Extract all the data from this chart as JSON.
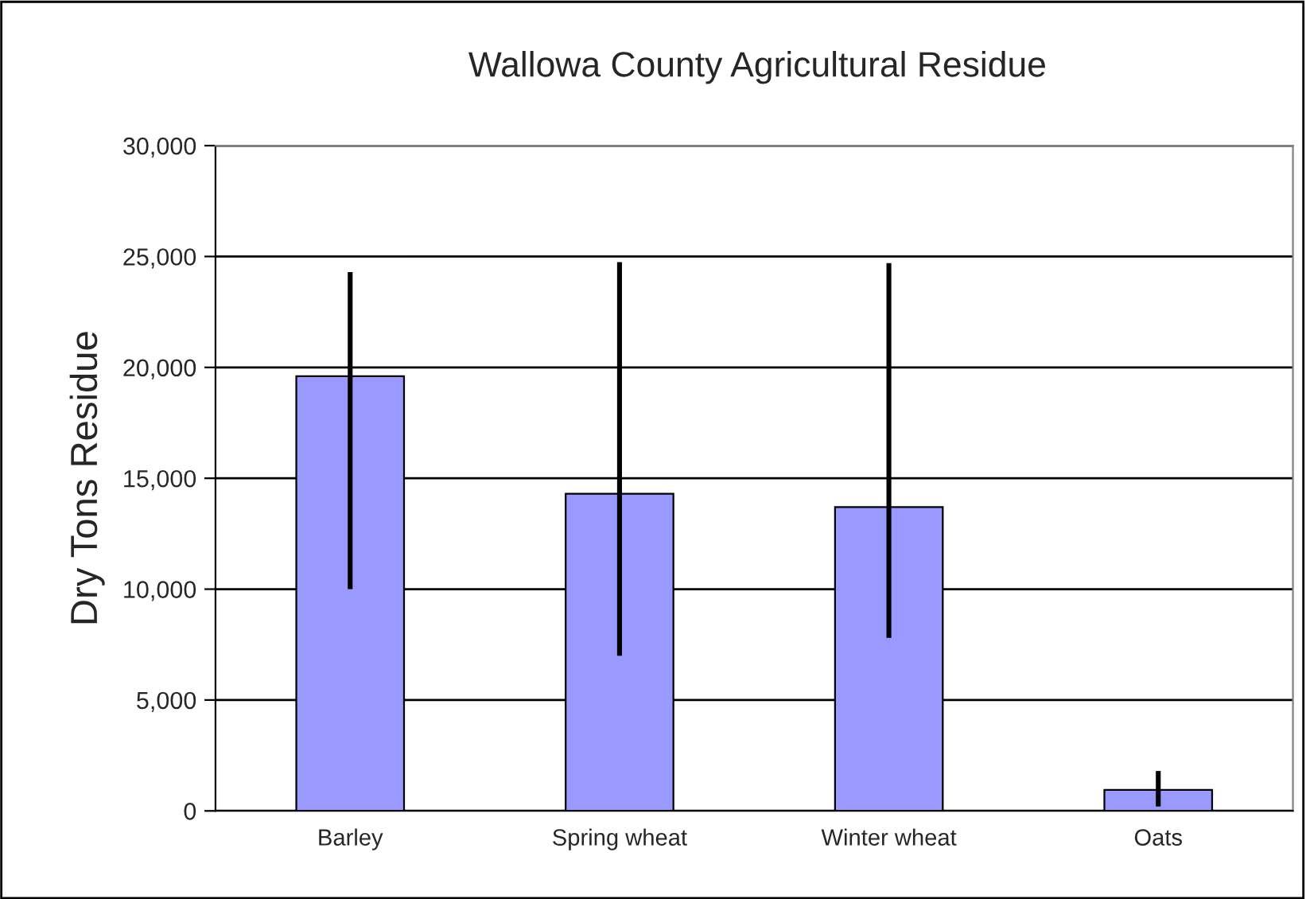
{
  "chart_data": {
    "type": "bar",
    "title": "Wallowa County Agricultural Residue",
    "ylabel": "Dry Tons Residue",
    "categories": [
      "Barley",
      "Spring wheat",
      "Winter wheat",
      "Oats"
    ],
    "values": [
      19600,
      14300,
      13700,
      950
    ],
    "color": "#9999ff",
    "errors": [
      [
        10000,
        24300
      ],
      [
        7000,
        24750
      ],
      [
        7800,
        24700
      ],
      [
        200,
        1800
      ]
    ],
    "ylim": [
      0,
      30000
    ],
    "yticks": [
      {
        "value": 0,
        "label": "0"
      },
      {
        "value": 5000,
        "label": "5,000"
      },
      {
        "value": 10000,
        "label": "10,000"
      },
      {
        "value": 15000,
        "label": "15,000"
      },
      {
        "value": 20000,
        "label": "20,000"
      },
      {
        "value": 25000,
        "label": "25,000"
      },
      {
        "value": 30000,
        "label": "30,000"
      }
    ],
    "grid": "y",
    "legend": false
  }
}
